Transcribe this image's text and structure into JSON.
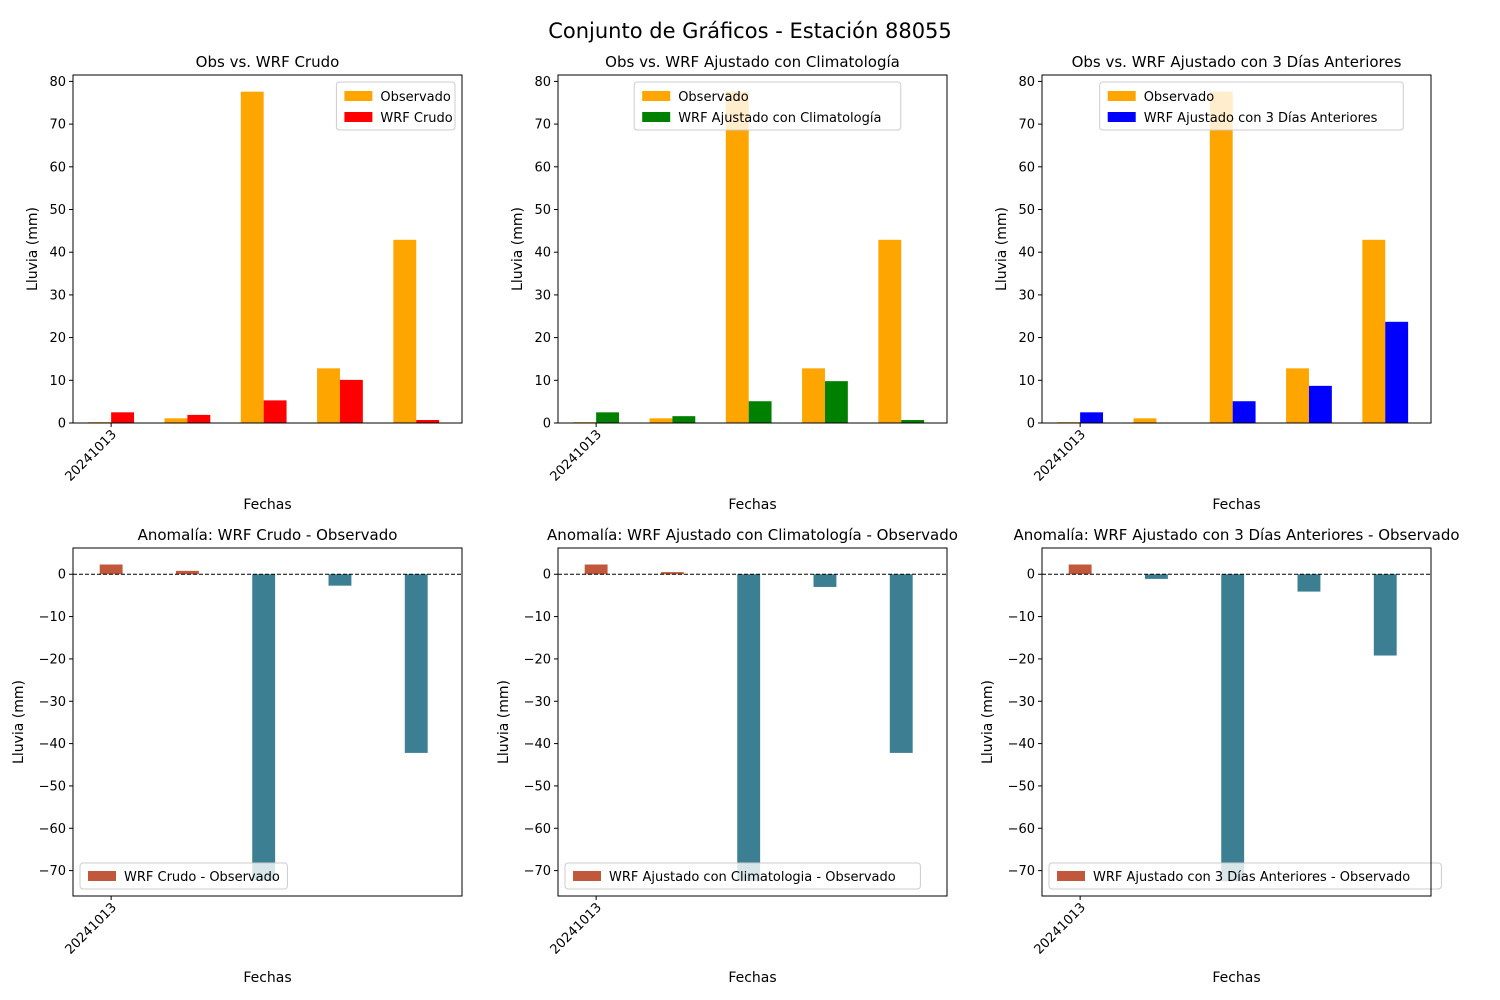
{
  "title": "Conjunto de Gráficos - Estación 88055",
  "colors": {
    "observado": "#ffa500",
    "crudo": "#ff0000",
    "climatologia": "#008000",
    "tres_dias": "#0000ff",
    "anomaly_positive": "#c1573b",
    "anomaly_negative": "#3c7f93"
  },
  "chart_data": [
    {
      "type": "bar",
      "title": "Obs vs. WRF Crudo",
      "xlabel": "Fechas",
      "ylabel": "Lluvia (mm)",
      "x_tick_labels": [
        "20241013"
      ],
      "ylim": [
        0,
        81.5
      ],
      "yticks": [
        0,
        10,
        20,
        30,
        40,
        50,
        60,
        70,
        80
      ],
      "legend_position": "upper right",
      "series": [
        {
          "name": "Observado",
          "color": "#ffa500",
          "values": [
            0.2,
            1.1,
            77.6,
            12.8,
            42.9
          ]
        },
        {
          "name": "WRF Crudo",
          "color": "#ff0000",
          "values": [
            2.5,
            1.9,
            5.3,
            10.1,
            0.7
          ]
        }
      ]
    },
    {
      "type": "bar",
      "title": "Obs vs. WRF Ajustado con Climatología",
      "xlabel": "Fechas",
      "ylabel": "Lluvia (mm)",
      "x_tick_labels": [
        "20241013"
      ],
      "ylim": [
        0,
        81.5
      ],
      "yticks": [
        0,
        10,
        20,
        30,
        40,
        50,
        60,
        70,
        80
      ],
      "legend_position": "upper center",
      "series": [
        {
          "name": "Observado",
          "color": "#ffa500",
          "values": [
            0.2,
            1.1,
            77.6,
            12.8,
            42.9
          ]
        },
        {
          "name": "WRF Ajustado con Climatología",
          "color": "#008000",
          "values": [
            2.5,
            1.6,
            5.1,
            9.8,
            0.7
          ]
        }
      ]
    },
    {
      "type": "bar",
      "title": "Obs vs. WRF Ajustado con 3 Días Anteriores",
      "xlabel": "Fechas",
      "ylabel": "Lluvia (mm)",
      "x_tick_labels": [
        "20241013"
      ],
      "ylim": [
        0,
        81.5
      ],
      "yticks": [
        0,
        10,
        20,
        30,
        40,
        50,
        60,
        70,
        80
      ],
      "legend_position": "upper center",
      "series": [
        {
          "name": "Observado",
          "color": "#ffa500",
          "values": [
            0.2,
            1.1,
            77.6,
            12.8,
            42.9
          ]
        },
        {
          "name": "WRF Ajustado con 3 Días Anteriores",
          "color": "#0000ff",
          "values": [
            2.5,
            0.0,
            5.1,
            8.7,
            23.7
          ]
        }
      ]
    },
    {
      "type": "bar",
      "title": "Anomalía: WRF Crudo - Observado",
      "xlabel": "Fechas",
      "ylabel": "Lluvia (mm)",
      "x_tick_labels": [
        "20241013"
      ],
      "ylim": [
        -76,
        6.2
      ],
      "yticks": [
        0,
        -10,
        -20,
        -30,
        -40,
        -50,
        -60,
        -70
      ],
      "reference_line": 0,
      "legend_position": "lower left",
      "legend": "WRF Crudo - Observado",
      "values": [
        2.3,
        0.8,
        -72.3,
        -2.7,
        -42.2
      ]
    },
    {
      "type": "bar",
      "title": "Anomalía: WRF Ajustado con Climatología - Observado",
      "xlabel": "Fechas",
      "ylabel": "Lluvia (mm)",
      "x_tick_labels": [
        "20241013"
      ],
      "ylim": [
        -76,
        6.2
      ],
      "yticks": [
        0,
        -10,
        -20,
        -30,
        -40,
        -50,
        -60,
        -70
      ],
      "reference_line": 0,
      "legend_position": "lower left",
      "legend": "WRF Ajustado con Climatologia - Observado",
      "values": [
        2.3,
        0.5,
        -72.5,
        -3.0,
        -42.2
      ]
    },
    {
      "type": "bar",
      "title": "Anomalía: WRF Ajustado con 3 Días Anteriores - Observado",
      "xlabel": "Fechas",
      "ylabel": "Lluvia (mm)",
      "x_tick_labels": [
        "20241013"
      ],
      "ylim": [
        -76,
        6.2
      ],
      "yticks": [
        0,
        -10,
        -20,
        -30,
        -40,
        -50,
        -60,
        -70
      ],
      "reference_line": 0,
      "legend_position": "lower left",
      "legend": "WRF Ajustado con 3 Días Anteriores - Observado",
      "values": [
        2.3,
        -1.1,
        -72.5,
        -4.1,
        -19.2
      ]
    }
  ]
}
